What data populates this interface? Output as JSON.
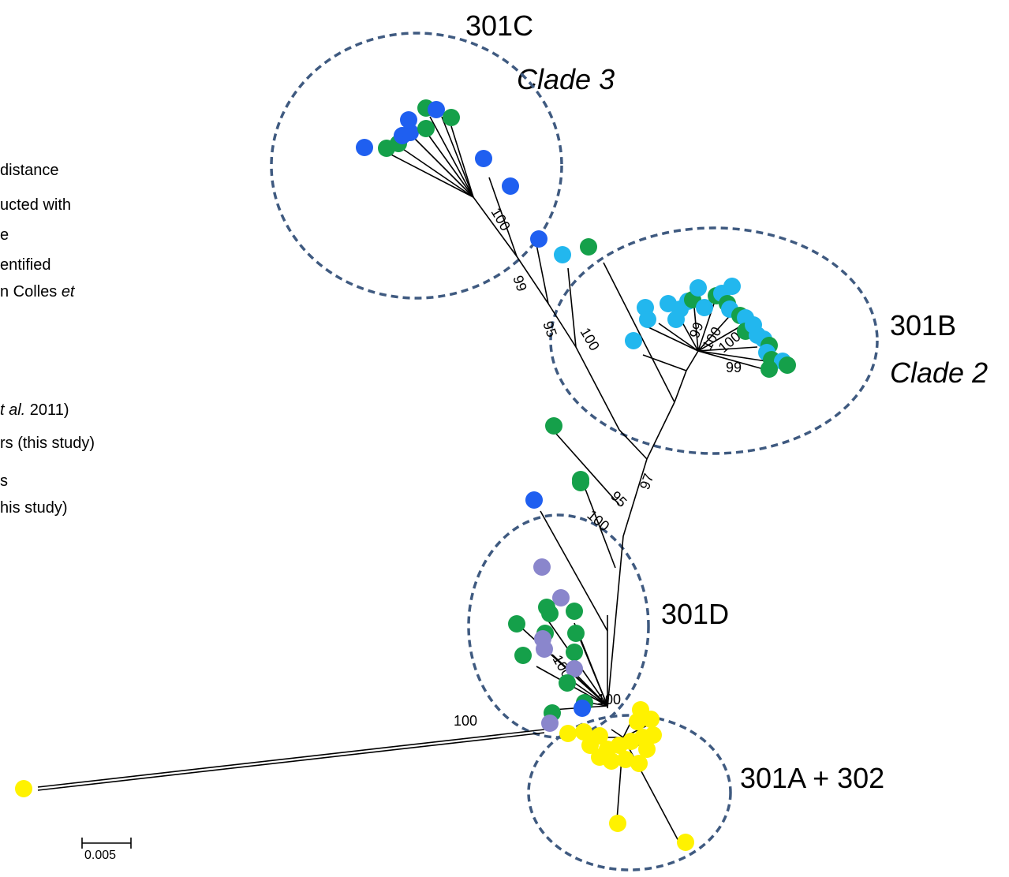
{
  "legend": {
    "lines": [
      "distance",
      "ucted with",
      "e",
      "entified",
      "n Colles ",
      "t al.",
      "rs (this study)",
      "s",
      "his study)"
    ],
    "italic_parts": {
      "line5": "et",
      "line6_rest": " 2011)"
    }
  },
  "clades": {
    "c301c": {
      "name": "301C",
      "subtitle": "Clade 3"
    },
    "c301b": {
      "name": "301B",
      "subtitle": "Clade 2"
    },
    "c301d": {
      "name": "301D"
    },
    "c301a": {
      "name": "301A + 302"
    }
  },
  "bootstrap": [
    "100",
    "99",
    "95",
    "100",
    "97",
    "95",
    "100",
    "100",
    "100",
    "99",
    "100",
    "100",
    "100",
    "99"
  ],
  "scale_bar": {
    "label": "0.005"
  },
  "colors": {
    "dark_blue": "#1f5ff0",
    "green": "#15a04a",
    "light_blue": "#22b7ee",
    "lavender": "#8a86cc",
    "yellow": "#fff200",
    "ellipse": "#3f5a80"
  }
}
